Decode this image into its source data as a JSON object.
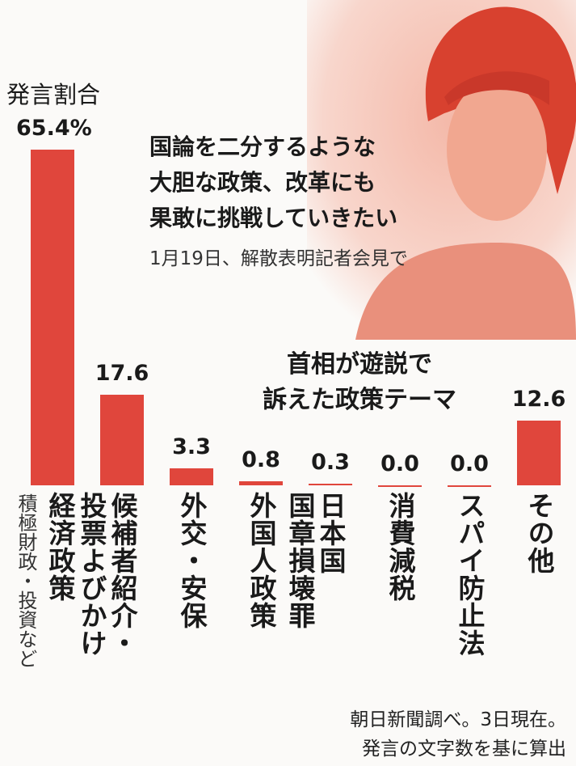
{
  "chart_data": {
    "type": "bar",
    "title_lines": [
      "首相が遊説で",
      "訴えた政策テーマ"
    ],
    "value_caption": "発言割合",
    "quote_lines": [
      "国論を二分するような",
      "大胆な政策、改革にも",
      "果敢に挑戦していきたい"
    ],
    "quote_source": "1月19日、解散表明記者会見で",
    "categories": [
      "経済政策",
      "候補者紹介・\n投票よびかけ",
      "外交・安保",
      "外国人政策",
      "日本国\n国章損壊罪",
      "消費減税",
      "スパイ防止法",
      "その他"
    ],
    "category_notes": [
      "積極財政・投資など",
      null,
      null,
      null,
      null,
      null,
      null,
      null
    ],
    "values": [
      65.4,
      17.6,
      3.3,
      0.8,
      0.3,
      0.0,
      0.0,
      12.6
    ],
    "value_labels": [
      "65.4%",
      "17.6",
      "3.3",
      "0.8",
      "0.3",
      "0.0",
      "0.0",
      "12.6"
    ],
    "color": "#e0463c",
    "ylim": [
      0,
      70
    ],
    "footer_lines": [
      "朝日新聞調べ。3日現在。",
      "発言の文字数を基に算出"
    ]
  }
}
